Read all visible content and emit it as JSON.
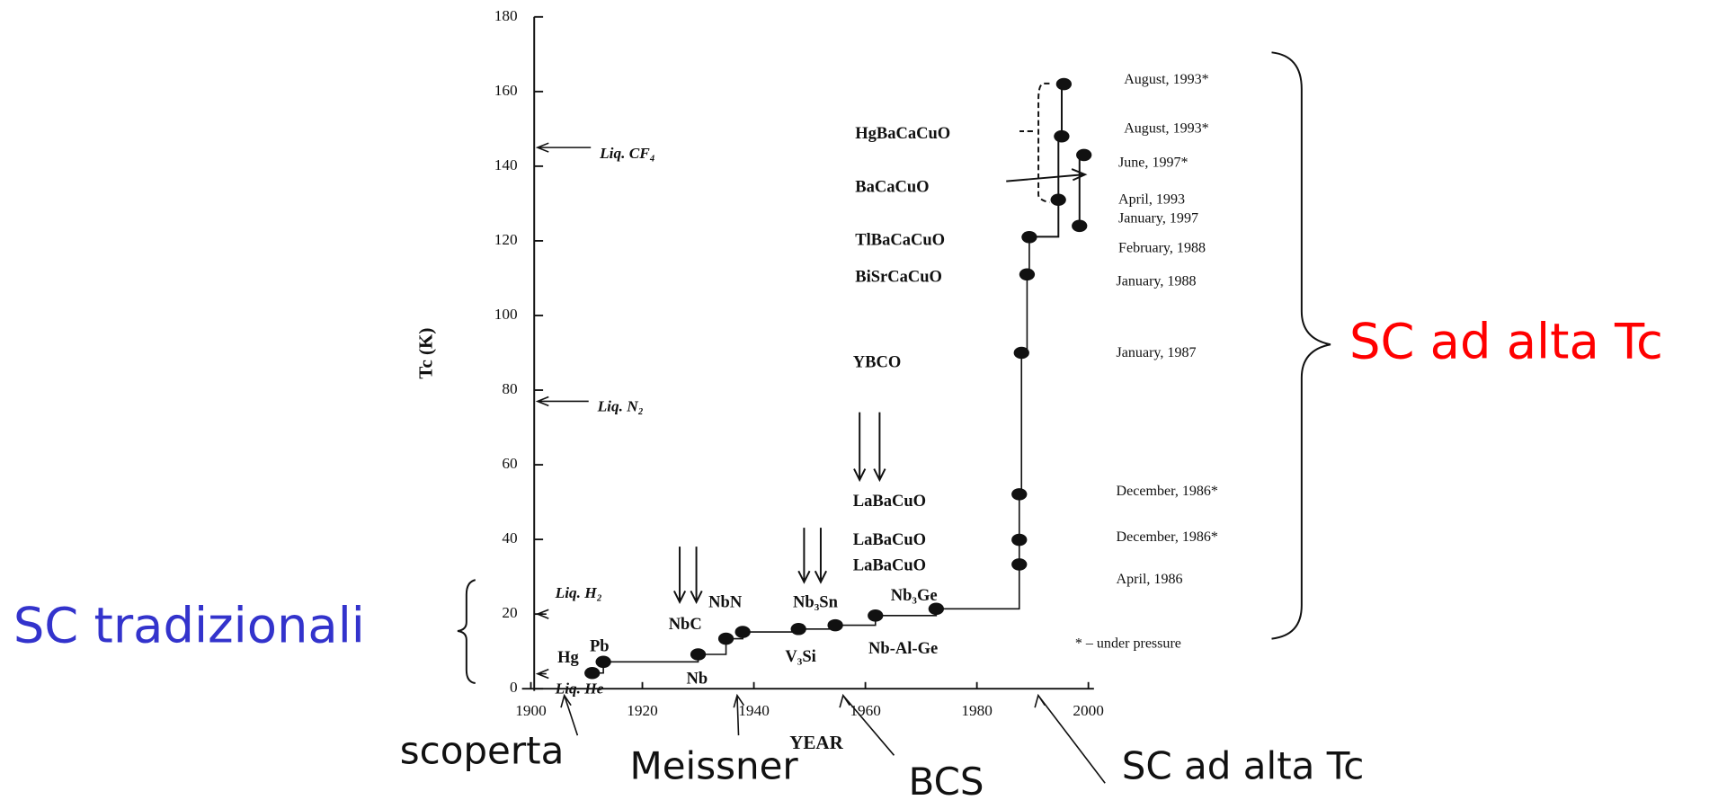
{
  "chart_data": {
    "type": "scatter",
    "ylabel": "Tc (K)",
    "xlabel": "YEAR",
    "xlim": [
      1900,
      2000
    ],
    "xticks": [
      1900,
      1920,
      1940,
      1960,
      1980,
      2000
    ],
    "ylim": [
      0,
      180
    ],
    "yticks": [
      0,
      20,
      40,
      60,
      80,
      100,
      120,
      140,
      160,
      180
    ],
    "series": [
      {
        "color": "#111111",
        "x": [
          1911,
          1913,
          1930,
          1935,
          1938,
          1948,
          1954.6,
          1961.8,
          1972.7,
          1987.6,
          1987.6,
          1987.6,
          1988,
          1989,
          1989.4
        ],
        "values": [
          4.2,
          7.2,
          9.2,
          13.4,
          15.2,
          16,
          17,
          19.6,
          21.4,
          33.3,
          39.9,
          52.1,
          90,
          111,
          121
        ]
      },
      {
        "color": "#111111",
        "x": [
          1994.6,
          1995.2,
          1995.6,
          1998.4,
          1999.2
        ],
        "values": [
          131,
          148,
          162,
          124,
          143
        ]
      }
    ],
    "materials": [
      "Hg",
      "Pb",
      "Nb",
      "NbC",
      "NbN",
      "Nb₃Sn",
      "V₃Si",
      "Nb₃Ge",
      "Nb-Al-Ge",
      "LaBaCuO",
      "LaBaCuO",
      "LaBaCuO",
      "YBCO",
      "BiSrCaCuO",
      "TlBaCaCuO",
      "BaCaCuO",
      "HgBaCaCuO"
    ],
    "dates": [
      "August, 1993*",
      "August, 1993*",
      "June, 1997*",
      "April, 1993",
      "January, 1997",
      "February, 1988",
      "January, 1988",
      "January, 1987",
      "December, 1986*",
      "December, 1986*",
      "April, 1986",
      "* – under pressure"
    ],
    "liquids": [
      {
        "label": "Liq. CF₄",
        "value": 145
      },
      {
        "label": "Liq. N₂",
        "value": 77
      },
      {
        "label": "Liq. H₂",
        "value": 20
      },
      {
        "label": "Liq. He",
        "value": 4
      }
    ],
    "events": [
      {
        "label": "scoperta",
        "year": 1906
      },
      {
        "label": "Meissner",
        "year": 1937
      },
      {
        "label": "BCS",
        "year": 1956
      },
      {
        "label": "SC ad alta Tc",
        "year": 1991
      }
    ],
    "groups": [
      {
        "label": "SC ad alta Tc",
        "color": "#ff0000"
      },
      {
        "label": "SC tradizionali",
        "color": "#3333cc"
      }
    ]
  }
}
